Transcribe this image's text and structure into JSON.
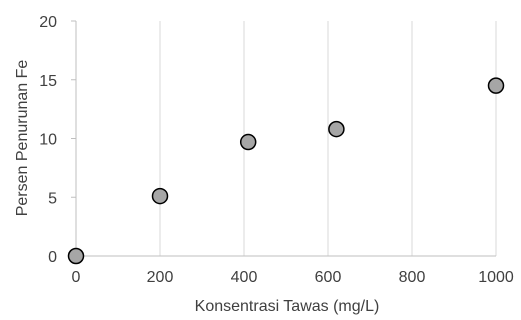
{
  "chart_data": {
    "type": "scatter",
    "title": "",
    "xlabel": "Konsentrasi Tawas (mg/L)",
    "ylabel": "Persen Penurunan Fe",
    "xlim": [
      0,
      1000
    ],
    "ylim": [
      0,
      20
    ],
    "x_ticks": [
      0,
      200,
      400,
      600,
      800,
      1000
    ],
    "y_ticks": [
      0,
      5,
      10,
      15,
      20
    ],
    "x_tick_labels": [
      "0",
      "200",
      "400",
      "600",
      "800",
      "1000"
    ],
    "y_tick_labels": [
      "0",
      "5",
      "10",
      "15",
      "20"
    ],
    "grid": "vertical",
    "legend": "none",
    "marker_fill": "#a6a6a6",
    "marker_edge": "#000000",
    "points": [
      {
        "x": 0,
        "y": 0
      },
      {
        "x": 200,
        "y": 5.1
      },
      {
        "x": 410,
        "y": 9.7
      },
      {
        "x": 620,
        "y": 10.8
      },
      {
        "x": 1000,
        "y": 14.5
      }
    ]
  }
}
